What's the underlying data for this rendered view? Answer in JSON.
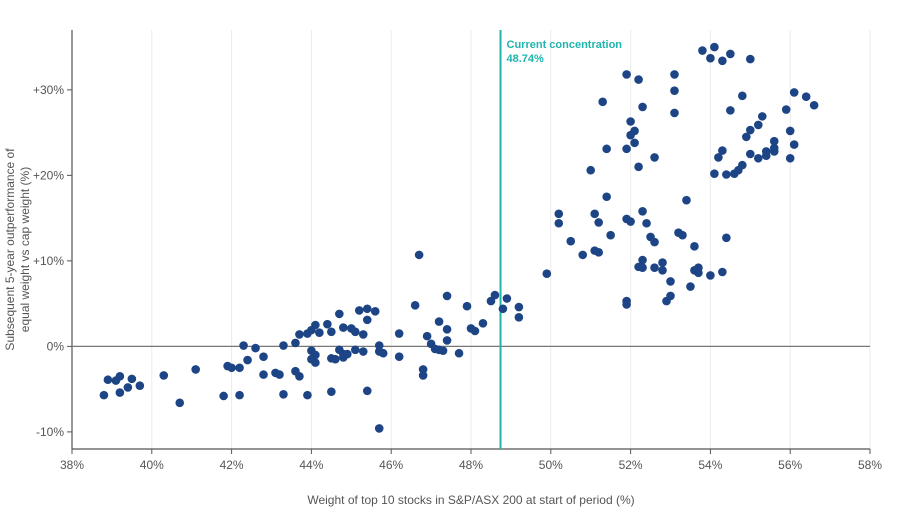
{
  "chart_data": {
    "type": "scatter",
    "xlabel": "Weight of top 10 stocks in S&P/ASX 200 at start of period (%)",
    "ylabel_lines": [
      "Subsequent 5-year outperformance of",
      "equal weight vs cap weight (%)"
    ],
    "xlim": [
      38,
      58
    ],
    "ylim": [
      -12,
      37
    ],
    "x_ticks": [
      {
        "value": 38,
        "label": "38%"
      },
      {
        "value": 40,
        "label": "40%"
      },
      {
        "value": 42,
        "label": "42%"
      },
      {
        "value": 44,
        "label": "44%"
      },
      {
        "value": 46,
        "label": "46%"
      },
      {
        "value": 48,
        "label": "48%"
      },
      {
        "value": 50,
        "label": "50%"
      },
      {
        "value": 52,
        "label": "52%"
      },
      {
        "value": 54,
        "label": "54%"
      },
      {
        "value": 56,
        "label": "56%"
      },
      {
        "value": 58,
        "label": "58%"
      }
    ],
    "y_ticks": [
      {
        "value": -10,
        "label": "-10%"
      },
      {
        "value": 0,
        "label": "0%"
      },
      {
        "value": 10,
        "label": "+10%"
      },
      {
        "value": 20,
        "label": "+20%"
      },
      {
        "value": 30,
        "label": "+30%"
      }
    ],
    "grid": "vertical",
    "reference_line": {
      "x": 48.74,
      "label_line1": "Current concentration",
      "label_line2": "48.74%",
      "color": "#1fb5ad"
    },
    "point_color": "#1d4585",
    "points": [
      [
        38.8,
        -5.7
      ],
      [
        38.9,
        -3.9
      ],
      [
        39.1,
        -4.0
      ],
      [
        39.2,
        -3.5
      ],
      [
        39.2,
        -5.4
      ],
      [
        39.4,
        -4.8
      ],
      [
        39.5,
        -3.8
      ],
      [
        39.7,
        -4.6
      ],
      [
        40.3,
        -3.4
      ],
      [
        40.7,
        -6.6
      ],
      [
        41.1,
        -2.7
      ],
      [
        41.8,
        -5.8
      ],
      [
        41.9,
        -2.3
      ],
      [
        42.0,
        -2.5
      ],
      [
        42.2,
        -2.5
      ],
      [
        42.2,
        -5.7
      ],
      [
        42.3,
        0.1
      ],
      [
        42.4,
        -1.6
      ],
      [
        42.6,
        -0.2
      ],
      [
        42.8,
        -1.2
      ],
      [
        42.8,
        -3.3
      ],
      [
        43.1,
        -3.1
      ],
      [
        43.2,
        -3.3
      ],
      [
        43.3,
        0.1
      ],
      [
        43.3,
        -5.6
      ],
      [
        43.6,
        -2.9
      ],
      [
        43.6,
        0.4
      ],
      [
        43.7,
        1.4
      ],
      [
        43.7,
        -3.5
      ],
      [
        43.9,
        1.5
      ],
      [
        43.9,
        -5.7
      ],
      [
        44.0,
        1.9
      ],
      [
        44.0,
        -0.5
      ],
      [
        44.0,
        -1.5
      ],
      [
        44.1,
        -1.0
      ],
      [
        44.1,
        -1.9
      ],
      [
        44.1,
        2.5
      ],
      [
        44.2,
        1.6
      ],
      [
        44.4,
        2.6
      ],
      [
        44.5,
        1.7
      ],
      [
        44.5,
        -1.4
      ],
      [
        44.5,
        -5.3
      ],
      [
        44.6,
        -1.5
      ],
      [
        44.7,
        3.8
      ],
      [
        44.7,
        -0.4
      ],
      [
        44.8,
        2.2
      ],
      [
        44.8,
        -0.9
      ],
      [
        44.8,
        -1.3
      ],
      [
        44.9,
        -0.9
      ],
      [
        45.0,
        2.1
      ],
      [
        45.1,
        1.7
      ],
      [
        45.1,
        -0.4
      ],
      [
        45.2,
        4.2
      ],
      [
        45.3,
        1.4
      ],
      [
        45.3,
        -0.6
      ],
      [
        45.4,
        4.4
      ],
      [
        45.4,
        3.1
      ],
      [
        45.4,
        -5.2
      ],
      [
        45.6,
        4.1
      ],
      [
        45.7,
        0.1
      ],
      [
        45.7,
        -0.6
      ],
      [
        45.7,
        -9.6
      ],
      [
        45.8,
        -0.8
      ],
      [
        46.2,
        1.5
      ],
      [
        46.2,
        -1.2
      ],
      [
        46.6,
        4.8
      ],
      [
        46.7,
        10.7
      ],
      [
        46.8,
        -2.7
      ],
      [
        46.8,
        -3.4
      ],
      [
        46.9,
        1.2
      ],
      [
        47.0,
        0.3
      ],
      [
        47.1,
        -0.3
      ],
      [
        47.2,
        2.9
      ],
      [
        47.2,
        -0.4
      ],
      [
        47.3,
        -0.5
      ],
      [
        47.4,
        2.0
      ],
      [
        47.4,
        5.9
      ],
      [
        47.4,
        0.7
      ],
      [
        47.7,
        -0.8
      ],
      [
        47.9,
        4.7
      ],
      [
        48.0,
        2.1
      ],
      [
        48.1,
        1.8
      ],
      [
        48.3,
        2.7
      ],
      [
        48.5,
        5.3
      ],
      [
        48.6,
        6.0
      ],
      [
        48.8,
        4.4
      ],
      [
        48.9,
        5.6
      ],
      [
        49.2,
        4.6
      ],
      [
        49.2,
        3.4
      ],
      [
        49.9,
        8.5
      ],
      [
        50.2,
        15.5
      ],
      [
        50.2,
        14.4
      ],
      [
        50.5,
        12.3
      ],
      [
        50.8,
        10.7
      ],
      [
        51.0,
        20.6
      ],
      [
        51.1,
        15.5
      ],
      [
        51.1,
        11.2
      ],
      [
        51.2,
        14.5
      ],
      [
        51.2,
        11.0
      ],
      [
        51.3,
        28.6
      ],
      [
        51.4,
        23.1
      ],
      [
        51.4,
        17.5
      ],
      [
        51.5,
        13.0
      ],
      [
        51.9,
        31.8
      ],
      [
        51.9,
        14.9
      ],
      [
        51.9,
        23.1
      ],
      [
        51.9,
        5.3
      ],
      [
        51.9,
        4.9
      ],
      [
        52.0,
        26.3
      ],
      [
        52.0,
        24.7
      ],
      [
        52.0,
        14.6
      ],
      [
        52.1,
        25.2
      ],
      [
        52.1,
        23.8
      ],
      [
        52.2,
        31.2
      ],
      [
        52.2,
        21.0
      ],
      [
        52.2,
        9.3
      ],
      [
        52.3,
        28.0
      ],
      [
        52.3,
        15.8
      ],
      [
        52.3,
        10.1
      ],
      [
        52.3,
        9.2
      ],
      [
        52.4,
        14.4
      ],
      [
        52.5,
        12.8
      ],
      [
        52.6,
        22.1
      ],
      [
        52.6,
        12.2
      ],
      [
        52.6,
        9.2
      ],
      [
        52.8,
        9.8
      ],
      [
        52.8,
        8.9
      ],
      [
        52.9,
        5.3
      ],
      [
        53.0,
        7.6
      ],
      [
        53.0,
        5.9
      ],
      [
        53.1,
        31.8
      ],
      [
        53.1,
        29.9
      ],
      [
        53.1,
        27.3
      ],
      [
        53.2,
        13.3
      ],
      [
        53.3,
        13.0
      ],
      [
        53.4,
        17.1
      ],
      [
        53.5,
        7.0
      ],
      [
        53.6,
        11.7
      ],
      [
        53.6,
        8.9
      ],
      [
        53.7,
        9.2
      ],
      [
        53.7,
        8.6
      ],
      [
        53.8,
        34.6
      ],
      [
        54.0,
        33.7
      ],
      [
        54.0,
        8.3
      ],
      [
        54.1,
        35.0
      ],
      [
        54.1,
        20.2
      ],
      [
        54.2,
        22.1
      ],
      [
        54.3,
        33.4
      ],
      [
        54.3,
        22.9
      ],
      [
        54.3,
        8.7
      ],
      [
        54.4,
        20.1
      ],
      [
        54.4,
        12.7
      ],
      [
        54.5,
        34.2
      ],
      [
        54.5,
        27.6
      ],
      [
        54.6,
        20.2
      ],
      [
        54.7,
        20.6
      ],
      [
        54.8,
        29.3
      ],
      [
        54.8,
        21.2
      ],
      [
        54.9,
        24.5
      ],
      [
        55.0,
        33.6
      ],
      [
        55.0,
        25.3
      ],
      [
        55.0,
        22.5
      ],
      [
        55.2,
        25.9
      ],
      [
        55.2,
        22.0
      ],
      [
        55.3,
        26.9
      ],
      [
        55.4,
        22.8
      ],
      [
        55.4,
        22.3
      ],
      [
        55.6,
        24.0
      ],
      [
        55.6,
        23.2
      ],
      [
        55.6,
        22.8
      ],
      [
        55.9,
        27.7
      ],
      [
        56.0,
        25.2
      ],
      [
        56.0,
        22.0
      ],
      [
        56.1,
        29.7
      ],
      [
        56.1,
        23.6
      ],
      [
        56.4,
        29.2
      ],
      [
        56.6,
        28.2
      ]
    ]
  }
}
